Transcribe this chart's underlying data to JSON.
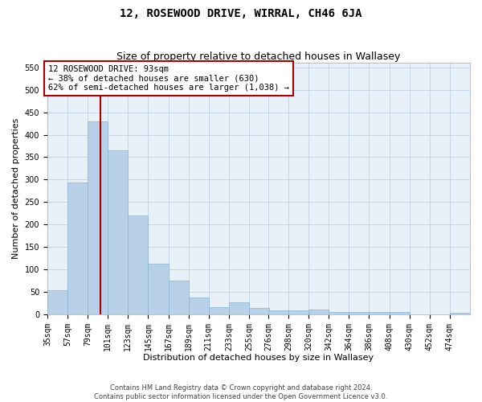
{
  "title": "12, ROSEWOOD DRIVE, WIRRAL, CH46 6JA",
  "subtitle": "Size of property relative to detached houses in Wallasey",
  "xlabel": "Distribution of detached houses by size in Wallasey",
  "ylabel": "Number of detached properties",
  "footer_line1": "Contains HM Land Registry data © Crown copyright and database right 2024.",
  "footer_line2": "Contains public sector information licensed under the Open Government Licence v3.0.",
  "bin_labels": [
    "35sqm",
    "57sqm",
    "79sqm",
    "101sqm",
    "123sqm",
    "145sqm",
    "167sqm",
    "189sqm",
    "211sqm",
    "233sqm",
    "255sqm",
    "276sqm",
    "298sqm",
    "320sqm",
    "342sqm",
    "364sqm",
    "386sqm",
    "408sqm",
    "430sqm",
    "452sqm",
    "474sqm"
  ],
  "bin_edges": [
    35,
    57,
    79,
    101,
    123,
    145,
    167,
    189,
    211,
    233,
    255,
    276,
    298,
    320,
    342,
    364,
    386,
    408,
    430,
    452,
    474,
    496
  ],
  "bar_values": [
    53,
    293,
    430,
    365,
    220,
    113,
    75,
    38,
    16,
    26,
    14,
    9,
    9,
    10,
    6,
    5,
    5,
    5,
    0,
    0,
    3
  ],
  "bar_color": "#b8d0e8",
  "bar_edge_color": "#8ab4d4",
  "property_size": 93,
  "property_label": "12 ROSEWOOD DRIVE: 93sqm",
  "annotation_line1": "← 38% of detached houses are smaller (630)",
  "annotation_line2": "62% of semi-detached houses are larger (1,038) →",
  "vline_color": "#aa0000",
  "annotation_box_edgecolor": "#aa0000",
  "ylim": [
    0,
    560
  ],
  "yticks": [
    0,
    50,
    100,
    150,
    200,
    250,
    300,
    350,
    400,
    450,
    500,
    550
  ],
  "grid_color": "#c0d0e4",
  "background_color": "#e8f0f8",
  "title_fontsize": 10,
  "subtitle_fontsize": 9,
  "axis_label_fontsize": 8,
  "tick_fontsize": 7,
  "annotation_fontsize": 7.5,
  "footer_fontsize": 6
}
